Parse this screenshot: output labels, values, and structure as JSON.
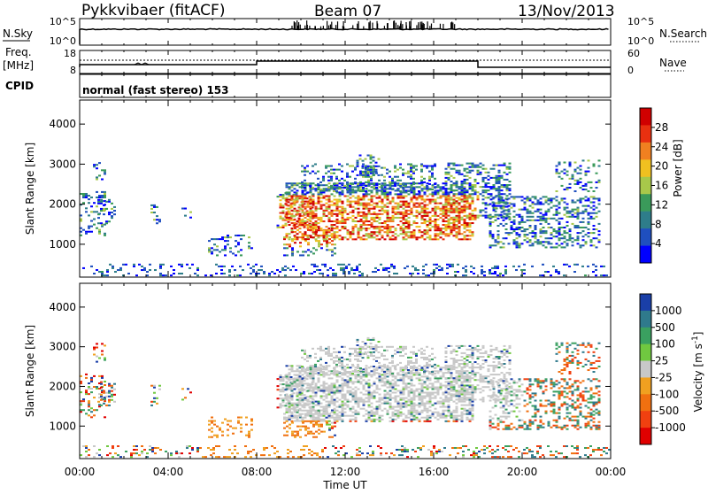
{
  "header": {
    "station": "Pykkvibaer (fitACF)",
    "beam": "Beam 07",
    "date": "13/Nov/2013"
  },
  "noise_panel": {
    "left_label": "N.Sky",
    "right_label": "N.Search",
    "left_ticks": [
      "10^5",
      "10^0"
    ],
    "right_ticks": [
      "10^5",
      "10^0"
    ]
  },
  "freq_panel": {
    "left_label_top": "Freq.",
    "left_label_bottom": "[MHz]",
    "left_ticks": [
      "18",
      "8"
    ],
    "right_label": "Nave",
    "right_ticks": [
      "60",
      "0"
    ]
  },
  "cpid": {
    "label": "CPID",
    "text": "normal (fast stereo) 153"
  },
  "chart_data": [
    {
      "type": "heatmap",
      "quantity": "Power",
      "ylabel": "Slant Range [km]",
      "xlabel": "Time UT",
      "x_ticks": [
        "00:00",
        "04:00",
        "08:00",
        "12:00",
        "16:00",
        "20:00",
        "00:00"
      ],
      "x_range_hours": [
        0,
        24
      ],
      "y_ticks": [
        1000,
        2000,
        3000,
        4000
      ],
      "y_range_km": [
        180,
        4600
      ],
      "colorbar": {
        "label": "Power [dB]",
        "ticks": [
          4,
          8,
          12,
          16,
          20,
          24,
          28
        ],
        "range": [
          0,
          32
        ],
        "colors": [
          "#0000ff",
          "#1f4fbf",
          "#2e7d8a",
          "#3a9a5a",
          "#a8c84a",
          "#f0c020",
          "#f08020",
          "#e83010",
          "#d00000"
        ]
      }
    },
    {
      "type": "heatmap",
      "quantity": "Velocity",
      "ylabel": "Slant Range [km]",
      "xlabel": "Time UT",
      "x_ticks": [
        "00:00",
        "04:00",
        "08:00",
        "12:00",
        "16:00",
        "20:00",
        "00:00"
      ],
      "x_range_hours": [
        0,
        24
      ],
      "y_ticks": [
        1000,
        2000,
        3000,
        4000
      ],
      "y_range_km": [
        180,
        4600
      ],
      "colorbar": {
        "label": "Velocity [m s^-1]",
        "ticks": [
          "1000",
          "500",
          "100",
          "25",
          "-25",
          "-100",
          "-500",
          "-1000"
        ],
        "colors": [
          "#1a3fa8",
          "#2f7a8c",
          "#3aa060",
          "#70c840",
          "#c8c8c8",
          "#f0a020",
          "#f07010",
          "#f04010",
          "#e00000"
        ]
      }
    }
  ],
  "colors": {
    "power_high": "#e01010",
    "power_mid": "#f0a020",
    "power_low": "#2e6fbf",
    "velocity_zero": "#c8c8c8"
  }
}
